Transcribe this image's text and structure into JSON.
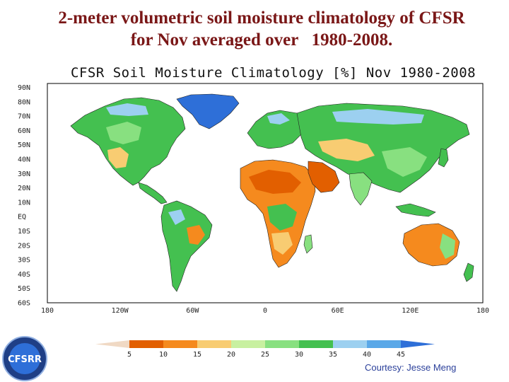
{
  "slide": {
    "title_line1": "2-meter volumetric soil moisture climatology of CFSR",
    "title_line2": "for Nov averaged over   1980-2008."
  },
  "map": {
    "title": "CFSR Soil Moisture Climatology [%] Nov 1980-2008",
    "lat_labels": [
      "90N",
      "80N",
      "70N",
      "60N",
      "50N",
      "40N",
      "30N",
      "20N",
      "10N",
      "EQ",
      "10S",
      "20S",
      "30S",
      "40S",
      "50S",
      "60S"
    ],
    "lon_labels": [
      "180",
      "120W",
      "60W",
      "0",
      "60E",
      "120E",
      "180"
    ]
  },
  "colorbar": {
    "labels": [
      "5",
      "10",
      "15",
      "20",
      "25",
      "30",
      "35",
      "40",
      "45"
    ],
    "colors": [
      "#f0d9c4",
      "#e25f00",
      "#f58a1e",
      "#f8cc72",
      "#c8f0a0",
      "#88e080",
      "#44c050",
      "#9cd0f0",
      "#5aa8e8",
      "#2e6fd8"
    ]
  },
  "legend_palette": {
    "ocean": "#ffffff",
    "ice": "#2e6fd8",
    "desert": "#f58a1e",
    "dry": "#f8cc72",
    "moderate": "#88e080",
    "wet": "#44c050",
    "very_wet": "#9cd0f0"
  },
  "credit": {
    "courtesy": "Courtesy: Jesse Meng",
    "logo_text": "CFSRR"
  }
}
